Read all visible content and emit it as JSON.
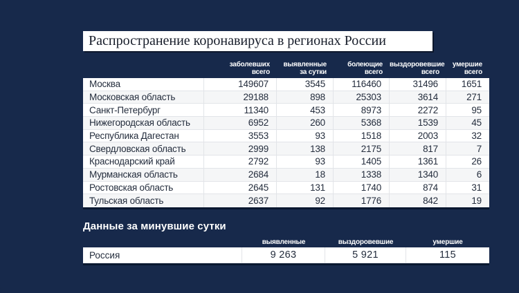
{
  "colors": {
    "background": "#17294b",
    "table_bottom_border": "#0a1830",
    "header_text": "#ffffff",
    "cell_text": "#242d3d"
  },
  "chart_data": [
    {
      "type": "table",
      "title": "Распространение коронавируса в регионах России",
      "columns": [
        "",
        "заболевших\nвсего",
        "выявленные\nза сутки",
        "болеющие\nвсего",
        "выздоровевшие\nвсего",
        "умершие\nвсего"
      ],
      "rows": [
        [
          "Москва",
          "149607",
          "3545",
          "116460",
          "31496",
          "1651"
        ],
        [
          "Московская область",
          "29188",
          "898",
          "25303",
          "3614",
          "271"
        ],
        [
          "Санкт-Петербург",
          "11340",
          "453",
          "8973",
          "2272",
          "95"
        ],
        [
          "Нижегородская область",
          "6952",
          "260",
          "5368",
          "1539",
          "45"
        ],
        [
          "Республика Дагестан",
          "3553",
          "93",
          "1518",
          "2003",
          "32"
        ],
        [
          "Свердловская область",
          "2999",
          "138",
          "2175",
          "817",
          "7"
        ],
        [
          "Краснодарский край",
          "2792",
          "93",
          "1405",
          "1361",
          "26"
        ],
        [
          "Мурманская область",
          "2684",
          "18",
          "1338",
          "1340",
          "6"
        ],
        [
          "Ростовская область",
          "2645",
          "131",
          "1740",
          "874",
          "31"
        ],
        [
          "Тульская область",
          "2637",
          "92",
          "1776",
          "842",
          "19"
        ]
      ]
    },
    {
      "type": "table",
      "title": "Данные за минувшие сутки",
      "columns": [
        "",
        "выявленные",
        "выздоровевшие",
        "умершие"
      ],
      "rows": [
        [
          "Россия",
          "9 263",
          "5 921",
          "115"
        ]
      ]
    }
  ]
}
